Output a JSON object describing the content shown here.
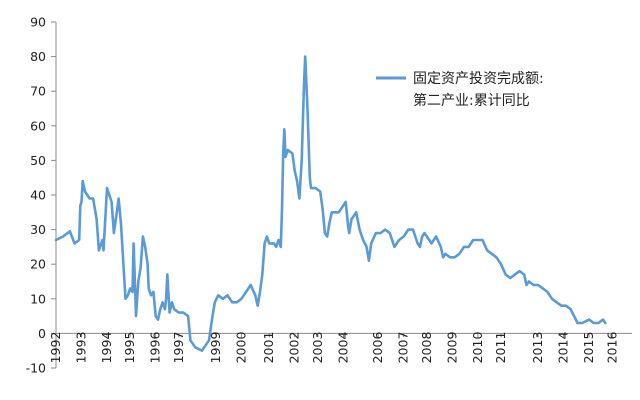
{
  "chart_data": {
    "type": "line",
    "title": "",
    "xlabel": "",
    "ylabel": "",
    "ylim": [
      -10,
      90
    ],
    "y_ticks": [
      90,
      80,
      70,
      60,
      50,
      40,
      30,
      20,
      10,
      0,
      -10
    ],
    "x_tick_labels": [
      "1992",
      "1993",
      "1994",
      "1995",
      "1996",
      "1997",
      "1999",
      "2000",
      "2001",
      "2002",
      "2003",
      "2004",
      "2006",
      "2007",
      "2008",
      "2009",
      "2010",
      "2011",
      "2013",
      "2014",
      "2015",
      "2016"
    ],
    "x_tick_dates": [
      1992.0,
      1993.1,
      1994.2,
      1995.2,
      1996.3,
      1997.3,
      1998.9,
      2000.0,
      2001.2,
      2002.3,
      2003.3,
      2004.4,
      2005.9,
      2007.0,
      2008.0,
      2009.1,
      2010.2,
      2011.2,
      2012.8,
      2013.9,
      2015.0,
      2016.0
    ],
    "grid": false,
    "legend": {
      "position": "top-right",
      "line1": "固定资产投资完成额:",
      "line2": "第二产业:累计同比"
    },
    "line_color": "#5b9bd5",
    "series": [
      {
        "name": "固定资产投资完成额:第二产业:累计同比",
        "points": [
          [
            1992.0,
            27
          ],
          [
            1992.3,
            28
          ],
          [
            1992.6,
            29.5
          ],
          [
            1992.8,
            26
          ],
          [
            1993.0,
            27
          ],
          [
            1993.05,
            37
          ],
          [
            1993.1,
            38
          ],
          [
            1993.15,
            44
          ],
          [
            1993.25,
            41
          ],
          [
            1993.45,
            39
          ],
          [
            1993.6,
            39
          ],
          [
            1993.75,
            33
          ],
          [
            1993.85,
            24
          ],
          [
            1993.95,
            26
          ],
          [
            1994.0,
            27
          ],
          [
            1994.05,
            24
          ],
          [
            1994.1,
            30
          ],
          [
            1994.2,
            42
          ],
          [
            1994.3,
            40
          ],
          [
            1994.4,
            38
          ],
          [
            1994.5,
            29
          ],
          [
            1994.6,
            34
          ],
          [
            1994.7,
            39
          ],
          [
            1994.8,
            32
          ],
          [
            1994.9,
            21
          ],
          [
            1995.0,
            10
          ],
          [
            1995.1,
            11
          ],
          [
            1995.2,
            13
          ],
          [
            1995.3,
            12
          ],
          [
            1995.35,
            26
          ],
          [
            1995.45,
            5
          ],
          [
            1995.55,
            15
          ],
          [
            1995.65,
            19
          ],
          [
            1995.75,
            28
          ],
          [
            1995.85,
            25
          ],
          [
            1995.95,
            20
          ],
          [
            1996.0,
            13
          ],
          [
            1996.1,
            11
          ],
          [
            1996.2,
            12
          ],
          [
            1996.3,
            5
          ],
          [
            1996.4,
            4
          ],
          [
            1996.5,
            7
          ],
          [
            1996.55,
            8
          ],
          [
            1996.6,
            9
          ],
          [
            1996.7,
            7
          ],
          [
            1996.75,
            10
          ],
          [
            1996.8,
            17
          ],
          [
            1996.9,
            6
          ],
          [
            1997.0,
            9
          ],
          [
            1997.1,
            7
          ],
          [
            1997.3,
            6
          ],
          [
            1997.5,
            6
          ],
          [
            1997.7,
            5
          ],
          [
            1997.8,
            -2
          ],
          [
            1997.9,
            -3
          ],
          [
            1998.0,
            -4
          ],
          [
            1998.3,
            -5
          ],
          [
            1998.6,
            -2
          ],
          [
            1998.75,
            5
          ],
          [
            1998.85,
            9
          ],
          [
            1999.0,
            11
          ],
          [
            1999.2,
            10
          ],
          [
            1999.4,
            11
          ],
          [
            1999.6,
            9
          ],
          [
            1999.8,
            9
          ],
          [
            2000.0,
            10
          ],
          [
            2000.2,
            12
          ],
          [
            2000.4,
            14
          ],
          [
            2000.6,
            11
          ],
          [
            2000.7,
            8
          ],
          [
            2000.8,
            12
          ],
          [
            2000.9,
            17
          ],
          [
            2001.0,
            26
          ],
          [
            2001.1,
            28
          ],
          [
            2001.2,
            26
          ],
          [
            2001.4,
            26
          ],
          [
            2001.5,
            25
          ],
          [
            2001.6,
            27
          ],
          [
            2001.7,
            25
          ],
          [
            2001.75,
            36
          ],
          [
            2001.8,
            52
          ],
          [
            2001.85,
            59
          ],
          [
            2001.9,
            51
          ],
          [
            2002.0,
            53
          ],
          [
            2002.2,
            52
          ],
          [
            2002.3,
            47
          ],
          [
            2002.4,
            44
          ],
          [
            2002.5,
            39
          ],
          [
            2002.6,
            50
          ],
          [
            2002.7,
            72
          ],
          [
            2002.75,
            80
          ],
          [
            2002.85,
            65
          ],
          [
            2002.95,
            45
          ],
          [
            2003.0,
            42
          ],
          [
            2003.2,
            42
          ],
          [
            2003.4,
            41
          ],
          [
            2003.5,
            36
          ],
          [
            2003.6,
            29
          ],
          [
            2003.7,
            28
          ],
          [
            2003.8,
            32
          ],
          [
            2003.9,
            35
          ],
          [
            2004.0,
            35
          ],
          [
            2004.2,
            35
          ],
          [
            2004.4,
            37
          ],
          [
            2004.5,
            38
          ],
          [
            2004.6,
            31
          ],
          [
            2004.65,
            29
          ],
          [
            2004.75,
            33
          ],
          [
            2004.85,
            34
          ],
          [
            2004.95,
            35
          ],
          [
            2005.1,
            30
          ],
          [
            2005.25,
            27
          ],
          [
            2005.4,
            25
          ],
          [
            2005.5,
            21
          ],
          [
            2005.6,
            26
          ],
          [
            2005.8,
            29
          ],
          [
            2006.0,
            29
          ],
          [
            2006.2,
            30
          ],
          [
            2006.4,
            29
          ],
          [
            2006.6,
            25
          ],
          [
            2006.8,
            27
          ],
          [
            2007.0,
            28
          ],
          [
            2007.2,
            30
          ],
          [
            2007.4,
            30
          ],
          [
            2007.6,
            26
          ],
          [
            2007.7,
            25
          ],
          [
            2007.8,
            28
          ],
          [
            2007.9,
            29
          ],
          [
            2008.0,
            28
          ],
          [
            2008.2,
            26
          ],
          [
            2008.4,
            28
          ],
          [
            2008.6,
            25
          ],
          [
            2008.7,
            22
          ],
          [
            2008.8,
            23
          ],
          [
            2009.0,
            22
          ],
          [
            2009.2,
            22
          ],
          [
            2009.4,
            23
          ],
          [
            2009.6,
            25
          ],
          [
            2009.8,
            25
          ],
          [
            2010.0,
            27
          ],
          [
            2010.2,
            27
          ],
          [
            2010.4,
            27
          ],
          [
            2010.6,
            24
          ],
          [
            2010.8,
            23
          ],
          [
            2011.0,
            22
          ],
          [
            2011.2,
            20
          ],
          [
            2011.4,
            17
          ],
          [
            2011.6,
            16
          ],
          [
            2011.8,
            17
          ],
          [
            2012.0,
            18
          ],
          [
            2012.2,
            17
          ],
          [
            2012.3,
            14
          ],
          [
            2012.4,
            15
          ],
          [
            2012.6,
            14
          ],
          [
            2012.8,
            14
          ],
          [
            2013.0,
            13
          ],
          [
            2013.2,
            12
          ],
          [
            2013.4,
            10
          ],
          [
            2013.6,
            9
          ],
          [
            2013.8,
            8
          ],
          [
            2014.0,
            8
          ],
          [
            2014.2,
            7
          ],
          [
            2014.35,
            5
          ],
          [
            2014.5,
            3
          ],
          [
            2014.7,
            3
          ],
          [
            2015.0,
            4
          ],
          [
            2015.2,
            3
          ],
          [
            2015.4,
            3
          ],
          [
            2015.6,
            4
          ],
          [
            2015.7,
            3
          ]
        ]
      }
    ]
  }
}
